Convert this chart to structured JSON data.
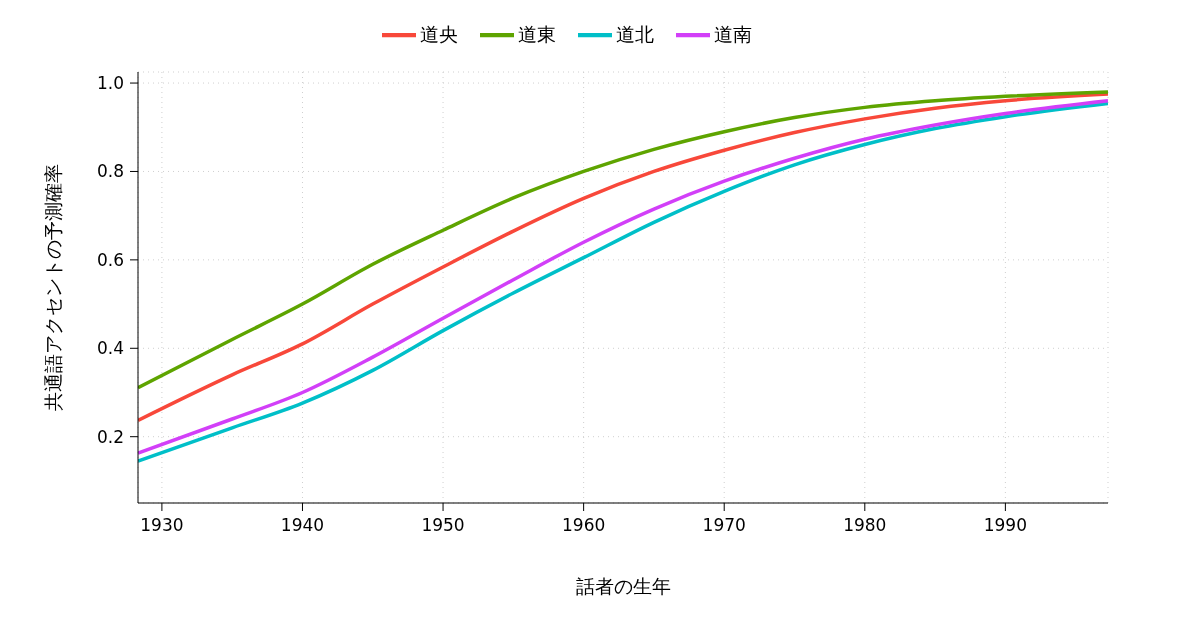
{
  "chart_data": {
    "type": "line",
    "xlabel": "話者の生年",
    "ylabel": "共通語アクセントの予測確率",
    "xlim": [
      1928.3,
      1997.3
    ],
    "xticks": [
      1930,
      1940,
      1950,
      1960,
      1970,
      1980,
      1990
    ],
    "ylim": [
      0.05,
      1.025
    ],
    "yticks": [
      0.2,
      0.4,
      0.6,
      0.8,
      {
        "value": 1,
        "label": "1.0"
      }
    ],
    "grid": true,
    "legend": "top",
    "marker": "none",
    "line_style": "solid",
    "x": [
      1928.3,
      1935,
      1940,
      1945,
      1950,
      1955,
      1960,
      1965,
      1970,
      1975,
      1980,
      1985,
      1990,
      1997.3
    ],
    "series": [
      {
        "name": "道央",
        "color": "#f8483a",
        "values": [
          0.237,
          0.34,
          0.41,
          0.5,
          0.584,
          0.665,
          0.739,
          0.8,
          0.848,
          0.888,
          0.919,
          0.943,
          0.96,
          0.975
        ]
      },
      {
        "name": "道東",
        "color": "#5ea400",
        "values": [
          0.311,
          0.42,
          0.5,
          0.59,
          0.667,
          0.74,
          0.8,
          0.85,
          0.89,
          0.922,
          0.945,
          0.96,
          0.97,
          0.98
        ]
      },
      {
        "name": "道北",
        "color": "#00bfc8",
        "values": [
          0.145,
          0.22,
          0.276,
          0.35,
          0.44,
          0.525,
          0.605,
          0.685,
          0.755,
          0.815,
          0.861,
          0.897,
          0.924,
          0.954
        ]
      },
      {
        "name": "道南",
        "color": "#d23ff8",
        "values": [
          0.163,
          0.24,
          0.3,
          0.38,
          0.468,
          0.555,
          0.64,
          0.715,
          0.778,
          0.83,
          0.873,
          0.905,
          0.931,
          0.96
        ]
      }
    ]
  }
}
